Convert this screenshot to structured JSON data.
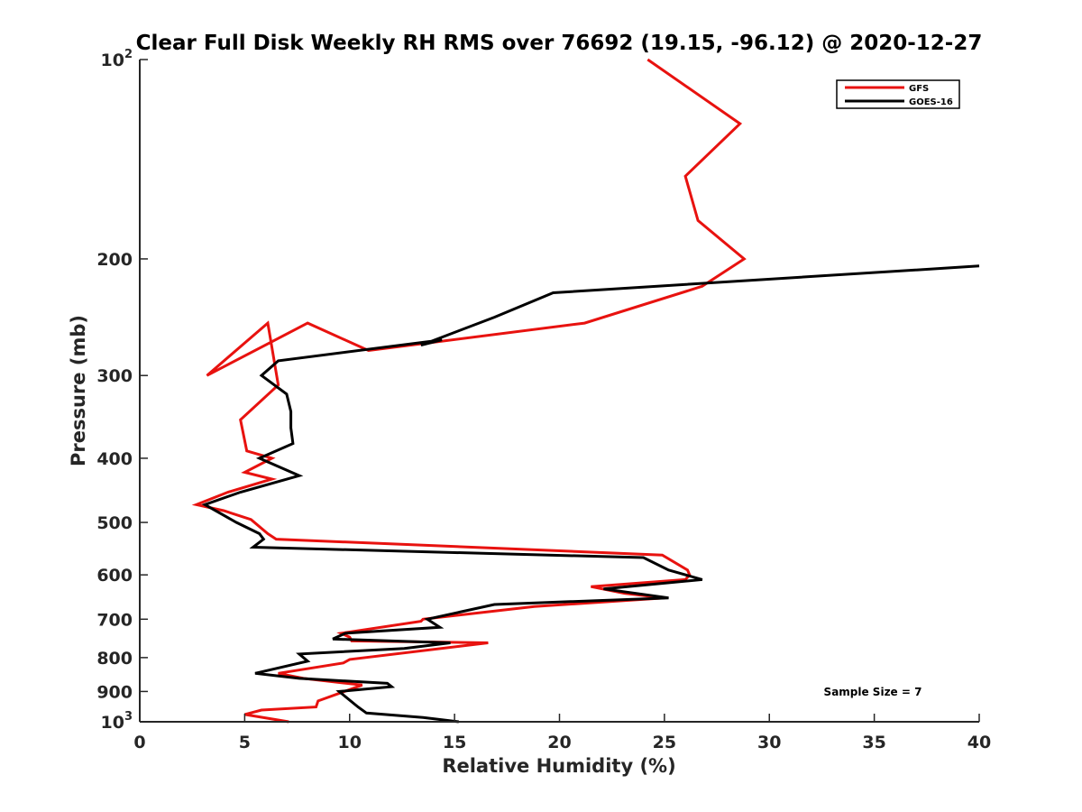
{
  "chart_data": {
    "type": "line",
    "title": "Clear Full Disk Weekly RH RMS over 76692 (19.15, -96.12) @ 2020-12-27",
    "xlabel": "Relative Humidity (%)",
    "ylabel": "Pressure (mb)",
    "xlim": [
      0,
      40
    ],
    "ylim": [
      100,
      1000
    ],
    "yscale": "log",
    "y_reversed": true,
    "xticks": [
      0,
      5,
      10,
      15,
      20,
      25,
      30,
      35,
      40
    ],
    "yticks": [
      {
        "value": 100,
        "base": "10",
        "exp": "2"
      },
      {
        "value": 200,
        "label": "200"
      },
      {
        "value": 300,
        "label": "300"
      },
      {
        "value": 400,
        "label": "400"
      },
      {
        "value": 500,
        "label": "500"
      },
      {
        "value": 600,
        "label": "600"
      },
      {
        "value": 700,
        "label": "700"
      },
      {
        "value": 800,
        "label": "800"
      },
      {
        "value": 900,
        "label": "900"
      },
      {
        "value": 1000,
        "base": "10",
        "exp": "3"
      }
    ],
    "legend_position": "top-right",
    "series": [
      {
        "name": "GFS",
        "color": "#e8120f",
        "points": [
          [
            24.2,
            100
          ],
          [
            28.6,
            125
          ],
          [
            26.0,
            150
          ],
          [
            26.6,
            175
          ],
          [
            28.8,
            200
          ],
          [
            26.8,
            220
          ],
          [
            21.2,
            250
          ],
          [
            10.9,
            275
          ],
          [
            8.0,
            250
          ],
          [
            3.2,
            300
          ],
          [
            6.1,
            250
          ],
          [
            6.6,
            310
          ],
          [
            4.8,
            350
          ],
          [
            5.1,
            390
          ],
          [
            6.3,
            400
          ],
          [
            5.0,
            420
          ],
          [
            6.3,
            430
          ],
          [
            4.2,
            450
          ],
          [
            2.7,
            470
          ],
          [
            4.0,
            480
          ],
          [
            5.3,
            495
          ],
          [
            6.1,
            520
          ],
          [
            6.5,
            530
          ],
          [
            24.9,
            560
          ],
          [
            26.1,
            590
          ],
          [
            26.2,
            600
          ],
          [
            26.0,
            610
          ],
          [
            21.5,
            625
          ],
          [
            23.1,
            640
          ],
          [
            25.0,
            650
          ],
          [
            18.8,
            670
          ],
          [
            13.5,
            700
          ],
          [
            13.4,
            705
          ],
          [
            9.6,
            735
          ],
          [
            10.0,
            745
          ],
          [
            10.1,
            755
          ],
          [
            16.6,
            760
          ],
          [
            10.0,
            805
          ],
          [
            9.7,
            815
          ],
          [
            6.6,
            845
          ],
          [
            7.8,
            860
          ],
          [
            10.6,
            880
          ],
          [
            8.5,
            930
          ],
          [
            8.4,
            950
          ],
          [
            5.8,
            960
          ],
          [
            5.0,
            975
          ],
          [
            7.1,
            1000
          ]
        ]
      },
      {
        "name": "GOES-16",
        "color": "#000000",
        "points": [
          [
            40.0,
            205
          ],
          [
            19.7,
            225
          ],
          [
            16.9,
            245
          ],
          [
            13.4,
            270
          ],
          [
            14.4,
            265
          ],
          [
            6.6,
            285
          ],
          [
            5.8,
            300
          ],
          [
            7.0,
            320
          ],
          [
            7.2,
            340
          ],
          [
            7.2,
            360
          ],
          [
            7.3,
            380
          ],
          [
            5.7,
            400
          ],
          [
            7.6,
            425
          ],
          [
            4.8,
            450
          ],
          [
            3.1,
            470
          ],
          [
            4.6,
            500
          ],
          [
            5.7,
            520
          ],
          [
            5.9,
            530
          ],
          [
            5.4,
            545
          ],
          [
            24.0,
            565
          ],
          [
            25.2,
            590
          ],
          [
            26.8,
            610
          ],
          [
            22.1,
            630
          ],
          [
            25.2,
            650
          ],
          [
            16.9,
            665
          ],
          [
            13.7,
            700
          ],
          [
            14.3,
            720
          ],
          [
            9.8,
            735
          ],
          [
            9.2,
            750
          ],
          [
            14.8,
            760
          ],
          [
            12.6,
            775
          ],
          [
            7.6,
            790
          ],
          [
            8.0,
            810
          ],
          [
            5.5,
            845
          ],
          [
            7.6,
            860
          ],
          [
            11.8,
            875
          ],
          [
            12.0,
            885
          ],
          [
            9.5,
            900
          ],
          [
            10.4,
            950
          ],
          [
            10.8,
            970
          ],
          [
            13.5,
            985
          ],
          [
            15.2,
            1000
          ]
        ]
      }
    ],
    "annotation": "Sample Size = 7"
  }
}
